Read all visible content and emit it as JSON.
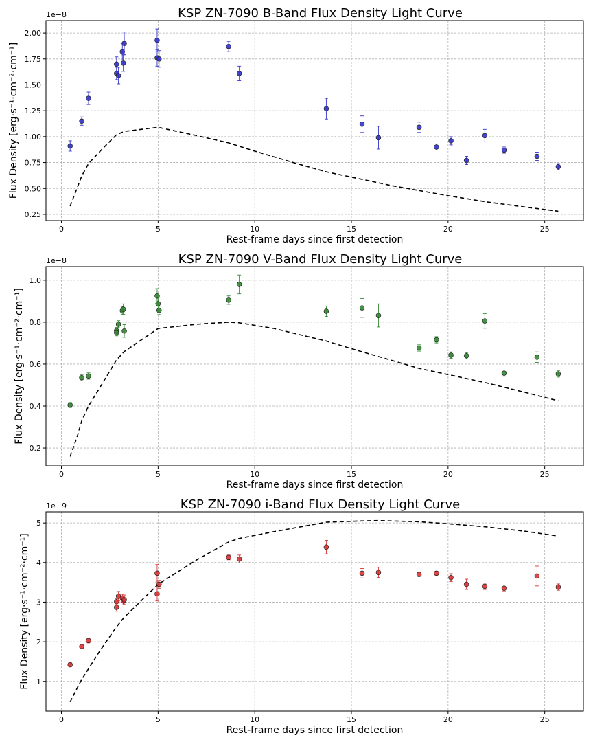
{
  "chart_data": [
    {
      "type": "scatter",
      "title": "KSP ZN-7090 B-Band Flux Density Light Curve",
      "xlabel": "Rest-frame days since first detection",
      "ylabel": "Flux Density [erg·s⁻¹·cm⁻²·cm⁻¹]",
      "offset_text": "1e−8",
      "xlim": [
        -0.8,
        27.0
      ],
      "ylim": [
        0.19,
        2.12
      ],
      "xticks": [
        0,
        5,
        10,
        15,
        20,
        25
      ],
      "xticklabels": [
        "0",
        "5",
        "10",
        "15",
        "20",
        "25"
      ],
      "yticks": [
        0.25,
        0.5,
        0.75,
        1.0,
        1.25,
        1.5,
        1.75,
        2.0
      ],
      "yticklabels": [
        "0.25",
        "0.50",
        "0.75",
        "1.00",
        "1.25",
        "1.50",
        "1.75",
        "2.00"
      ],
      "grid": true,
      "color": "#3333cc",
      "points": [
        {
          "x": 0.45,
          "y": 0.91,
          "err": 0.05
        },
        {
          "x": 1.05,
          "y": 1.15,
          "err": 0.04
        },
        {
          "x": 1.4,
          "y": 1.37,
          "err": 0.06
        },
        {
          "x": 2.85,
          "y": 1.7,
          "err": 0.07
        },
        {
          "x": 2.85,
          "y": 1.61,
          "err": 0.06
        },
        {
          "x": 2.95,
          "y": 1.59,
          "err": 0.08
        },
        {
          "x": 3.15,
          "y": 1.82,
          "err": 0.08
        },
        {
          "x": 3.2,
          "y": 1.71,
          "err": 0.08
        },
        {
          "x": 3.25,
          "y": 1.9,
          "err": 0.11
        },
        {
          "x": 4.95,
          "y": 1.93,
          "err": 0.11
        },
        {
          "x": 4.95,
          "y": 1.76,
          "err": 0.08
        },
        {
          "x": 5.05,
          "y": 1.75,
          "err": 0.08
        },
        {
          "x": 8.65,
          "y": 1.87,
          "err": 0.05
        },
        {
          "x": 9.2,
          "y": 1.61,
          "err": 0.07
        },
        {
          "x": 13.7,
          "y": 1.27,
          "err": 0.1
        },
        {
          "x": 15.55,
          "y": 1.12,
          "err": 0.08
        },
        {
          "x": 16.4,
          "y": 0.99,
          "err": 0.11
        },
        {
          "x": 18.5,
          "y": 1.09,
          "err": 0.05
        },
        {
          "x": 19.4,
          "y": 0.9,
          "err": 0.03
        },
        {
          "x": 20.15,
          "y": 0.96,
          "err": 0.04
        },
        {
          "x": 20.95,
          "y": 0.77,
          "err": 0.04
        },
        {
          "x": 21.9,
          "y": 1.01,
          "err": 0.06
        },
        {
          "x": 22.9,
          "y": 0.87,
          "err": 0.03
        },
        {
          "x": 24.6,
          "y": 0.81,
          "err": 0.04
        },
        {
          "x": 25.7,
          "y": 0.71,
          "err": 0.03
        }
      ],
      "model": {
        "x": [
          0.45,
          0.8,
          1.05,
          1.4,
          2.0,
          2.85,
          3.25,
          5.0,
          7.0,
          8.65,
          10.0,
          12.0,
          13.7,
          15.5,
          17.0,
          18.5,
          20.0,
          22.0,
          24.0,
          25.7
        ],
        "y": [
          0.33,
          0.5,
          0.62,
          0.74,
          0.86,
          1.02,
          1.05,
          1.09,
          1.01,
          0.94,
          0.86,
          0.75,
          0.66,
          0.59,
          0.53,
          0.48,
          0.43,
          0.37,
          0.32,
          0.28
        ]
      }
    },
    {
      "type": "scatter",
      "title": "KSP ZN-7090 V-Band Flux Density Light Curve",
      "xlabel": "Rest-frame days since first detection",
      "ylabel": "Flux Density [erg·s⁻¹·cm⁻²·cm⁻¹]",
      "offset_text": "1e−8",
      "xlim": [
        -0.8,
        27.0
      ],
      "ylim": [
        0.115,
        1.065
      ],
      "xticks": [
        0,
        5,
        10,
        15,
        20,
        25
      ],
      "xticklabels": [
        "0",
        "5",
        "10",
        "15",
        "20",
        "25"
      ],
      "yticks": [
        0.2,
        0.4,
        0.6,
        0.8,
        1.0
      ],
      "yticklabels": [
        "0.2",
        "0.4",
        "0.6",
        "0.8",
        "1.0"
      ],
      "grid": true,
      "color": "#338833",
      "points": [
        {
          "x": 0.45,
          "y": 0.405,
          "err": 0.012
        },
        {
          "x": 1.05,
          "y": 0.535,
          "err": 0.015
        },
        {
          "x": 1.4,
          "y": 0.543,
          "err": 0.015
        },
        {
          "x": 2.85,
          "y": 0.76,
          "err": 0.015
        },
        {
          "x": 2.85,
          "y": 0.75,
          "err": 0.015
        },
        {
          "x": 2.95,
          "y": 0.79,
          "err": 0.017
        },
        {
          "x": 3.15,
          "y": 0.855,
          "err": 0.02
        },
        {
          "x": 3.2,
          "y": 0.862,
          "err": 0.025
        },
        {
          "x": 3.25,
          "y": 0.758,
          "err": 0.03
        },
        {
          "x": 4.95,
          "y": 0.925,
          "err": 0.035
        },
        {
          "x": 5.0,
          "y": 0.888,
          "err": 0.03
        },
        {
          "x": 5.05,
          "y": 0.856,
          "err": 0.02
        },
        {
          "x": 8.65,
          "y": 0.905,
          "err": 0.02
        },
        {
          "x": 9.2,
          "y": 0.98,
          "err": 0.045
        },
        {
          "x": 13.7,
          "y": 0.852,
          "err": 0.025
        },
        {
          "x": 15.55,
          "y": 0.868,
          "err": 0.045
        },
        {
          "x": 16.4,
          "y": 0.832,
          "err": 0.055
        },
        {
          "x": 18.5,
          "y": 0.677,
          "err": 0.015
        },
        {
          "x": 19.4,
          "y": 0.716,
          "err": 0.015
        },
        {
          "x": 20.15,
          "y": 0.643,
          "err": 0.015
        },
        {
          "x": 20.95,
          "y": 0.64,
          "err": 0.015
        },
        {
          "x": 21.9,
          "y": 0.806,
          "err": 0.035
        },
        {
          "x": 22.9,
          "y": 0.557,
          "err": 0.015
        },
        {
          "x": 24.6,
          "y": 0.633,
          "err": 0.025
        },
        {
          "x": 25.7,
          "y": 0.553,
          "err": 0.015
        }
      ],
      "model": {
        "x": [
          0.45,
          0.8,
          1.05,
          1.4,
          2.0,
          2.85,
          3.25,
          5.0,
          7.0,
          8.65,
          9.2,
          11.0,
          13.7,
          15.5,
          17.0,
          18.5,
          20.0,
          22.0,
          24.0,
          25.7
        ],
        "y": [
          0.16,
          0.25,
          0.33,
          0.4,
          0.49,
          0.62,
          0.66,
          0.77,
          0.79,
          0.8,
          0.797,
          0.77,
          0.71,
          0.66,
          0.62,
          0.58,
          0.55,
          0.51,
          0.465,
          0.425
        ]
      }
    },
    {
      "type": "scatter",
      "title": "KSP ZN-7090 i-Band Flux Density Light Curve",
      "xlabel": "Rest-frame days since first detection",
      "ylabel": "Flux Density [erg·s⁻¹·cm⁻²·cm⁻¹]",
      "offset_text": "1e−9",
      "xlim": [
        -0.8,
        27.0
      ],
      "ylim": [
        0.25,
        5.28
      ],
      "xticks": [
        0,
        5,
        10,
        15,
        20,
        25
      ],
      "xticklabels": [
        "0",
        "5",
        "10",
        "15",
        "20",
        "25"
      ],
      "yticks": [
        1,
        2,
        3,
        4,
        5
      ],
      "yticklabels": [
        "1",
        "2",
        "3",
        "4",
        "5"
      ],
      "grid": true,
      "color": "#dd3333",
      "points": [
        {
          "x": 0.45,
          "y": 1.42,
          "err": 0.05
        },
        {
          "x": 1.05,
          "y": 1.88,
          "err": 0.06
        },
        {
          "x": 1.4,
          "y": 2.03,
          "err": 0.06
        },
        {
          "x": 2.85,
          "y": 3.01,
          "err": 0.08
        },
        {
          "x": 2.85,
          "y": 2.87,
          "err": 0.1
        },
        {
          "x": 2.95,
          "y": 3.15,
          "err": 0.12
        },
        {
          "x": 3.15,
          "y": 3.1,
          "err": 0.1
        },
        {
          "x": 3.2,
          "y": 3.03,
          "err": 0.1
        },
        {
          "x": 3.25,
          "y": 3.06,
          "err": 0.12
        },
        {
          "x": 4.95,
          "y": 3.73,
          "err": 0.22
        },
        {
          "x": 4.95,
          "y": 3.21,
          "err": 0.18
        },
        {
          "x": 5.05,
          "y": 3.45,
          "err": 0.1
        },
        {
          "x": 8.65,
          "y": 4.13,
          "err": 0.06
        },
        {
          "x": 9.2,
          "y": 4.09,
          "err": 0.1
        },
        {
          "x": 13.7,
          "y": 4.39,
          "err": 0.17
        },
        {
          "x": 15.55,
          "y": 3.73,
          "err": 0.12
        },
        {
          "x": 16.4,
          "y": 3.75,
          "err": 0.13
        },
        {
          "x": 18.5,
          "y": 3.7,
          "err": 0.05
        },
        {
          "x": 19.4,
          "y": 3.73,
          "err": 0.05
        },
        {
          "x": 20.15,
          "y": 3.62,
          "err": 0.1
        },
        {
          "x": 20.95,
          "y": 3.45,
          "err": 0.13
        },
        {
          "x": 21.9,
          "y": 3.4,
          "err": 0.08
        },
        {
          "x": 22.9,
          "y": 3.35,
          "err": 0.08
        },
        {
          "x": 24.6,
          "y": 3.66,
          "err": 0.25
        },
        {
          "x": 25.7,
          "y": 3.38,
          "err": 0.08
        }
      ],
      "model": {
        "x": [
          0.45,
          0.8,
          1.05,
          1.4,
          2.0,
          2.85,
          3.25,
          5.0,
          7.0,
          8.65,
          9.2,
          11.0,
          13.7,
          15.5,
          16.4,
          18.5,
          20.0,
          22.0,
          24.0,
          25.7
        ],
        "y": [
          0.48,
          0.82,
          1.05,
          1.32,
          1.78,
          2.38,
          2.62,
          3.45,
          4.07,
          4.52,
          4.61,
          4.78,
          5.02,
          5.05,
          5.06,
          5.03,
          4.98,
          4.9,
          4.79,
          4.67
        ]
      }
    }
  ]
}
